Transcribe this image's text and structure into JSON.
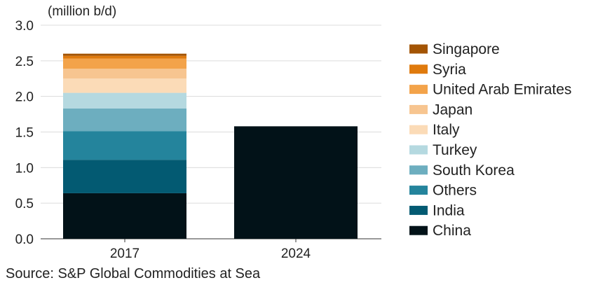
{
  "chart_data": {
    "type": "bar",
    "stacked": true,
    "y_unit_label": "(million b/d)",
    "source": "Source: S&P Global Commodities at Sea",
    "categories": [
      "2017",
      "2024"
    ],
    "ylim": [
      0,
      3.0
    ],
    "yticks": [
      "0.0",
      "0.5",
      "1.0",
      "1.5",
      "2.0",
      "2.5",
      "3.0"
    ],
    "grid": true,
    "legend_position": "right",
    "series": [
      {
        "name": "China",
        "color": "#021218",
        "values": [
          0.64,
          1.58
        ]
      },
      {
        "name": "India",
        "color": "#035a72",
        "values": [
          0.47,
          0
        ]
      },
      {
        "name": "Others",
        "color": "#24849c",
        "values": [
          0.4,
          0
        ]
      },
      {
        "name": "South Korea",
        "color": "#6daebf",
        "values": [
          0.32,
          0
        ]
      },
      {
        "name": "Turkey",
        "color": "#b5d9e0",
        "values": [
          0.22,
          0
        ]
      },
      {
        "name": "Italy",
        "color": "#fbdbb7",
        "values": [
          0.2,
          0
        ]
      },
      {
        "name": "Japan",
        "color": "#f7c590",
        "values": [
          0.14,
          0
        ]
      },
      {
        "name": "United Arab Emirates",
        "color": "#f3a34a",
        "values": [
          0.14,
          0
        ]
      },
      {
        "name": "Syria",
        "color": "#df7a0d",
        "values": [
          0.04,
          0
        ]
      },
      {
        "name": "Singapore",
        "color": "#a35404",
        "values": [
          0.03,
          0
        ]
      }
    ]
  }
}
